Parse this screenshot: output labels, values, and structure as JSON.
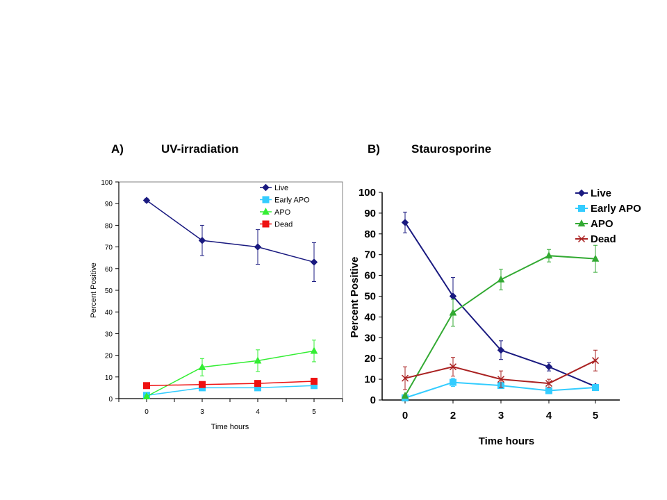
{
  "chart_data": [
    {
      "type": "line",
      "panel_label": "A)",
      "title": "UV-irradiation",
      "xlabel": "Time hours",
      "ylabel": "Percent Positive",
      "categories": [
        "0",
        "3",
        "4",
        "5"
      ],
      "ylim": [
        0,
        100
      ],
      "ytick_step": 10,
      "grid": false,
      "legend_position": "top-right",
      "series": [
        {
          "name": "Live",
          "color": "#1a1a80",
          "marker": "diamond",
          "values": [
            91.5,
            73,
            70,
            63
          ],
          "errors": [
            0.8,
            7,
            8,
            9
          ]
        },
        {
          "name": "Early APO",
          "color": "#33ccff",
          "marker": "square",
          "values": [
            1.5,
            5,
            5,
            6
          ],
          "errors": [
            0.3,
            0.5,
            0.5,
            0.5
          ]
        },
        {
          "name": "APO",
          "color": "#33ee33",
          "marker": "triangle",
          "values": [
            1,
            14.5,
            17.5,
            22
          ],
          "errors": [
            0.3,
            4,
            5,
            5
          ]
        },
        {
          "name": "Dead",
          "color": "#ee1111",
          "marker": "square",
          "values": [
            6,
            6.5,
            7,
            8
          ],
          "errors": [
            0.5,
            0.5,
            1,
            1
          ]
        }
      ]
    },
    {
      "type": "line",
      "panel_label": "B)",
      "title": "Staurosporine",
      "xlabel": "Time hours",
      "ylabel": "Percent Positive",
      "categories": [
        "0",
        "2",
        "3",
        "4",
        "5"
      ],
      "ylim": [
        0,
        100
      ],
      "ytick_step": 10,
      "grid": false,
      "legend_position": "top-right",
      "series": [
        {
          "name": "Live",
          "color": "#1a1a80",
          "marker": "diamond",
          "values": [
            85.5,
            50,
            24,
            16,
            6.5
          ],
          "errors": [
            5,
            9,
            4.5,
            2,
            1
          ]
        },
        {
          "name": "Early APO",
          "color": "#33ccff",
          "marker": "square",
          "values": [
            1,
            8.5,
            7,
            4.5,
            6
          ],
          "errors": [
            0.5,
            2,
            1.5,
            1.5,
            1.5
          ]
        },
        {
          "name": "APO",
          "color": "#33aa33",
          "marker": "triangle",
          "values": [
            2,
            42,
            58,
            69.5,
            68
          ],
          "errors": [
            0.5,
            6.5,
            5,
            3,
            6.5
          ]
        },
        {
          "name": "Dead",
          "color": "#aa2222",
          "marker": "x",
          "values": [
            10.5,
            16,
            10,
            8,
            19
          ],
          "errors": [
            5.5,
            4.5,
            4,
            2,
            5
          ]
        }
      ]
    }
  ]
}
